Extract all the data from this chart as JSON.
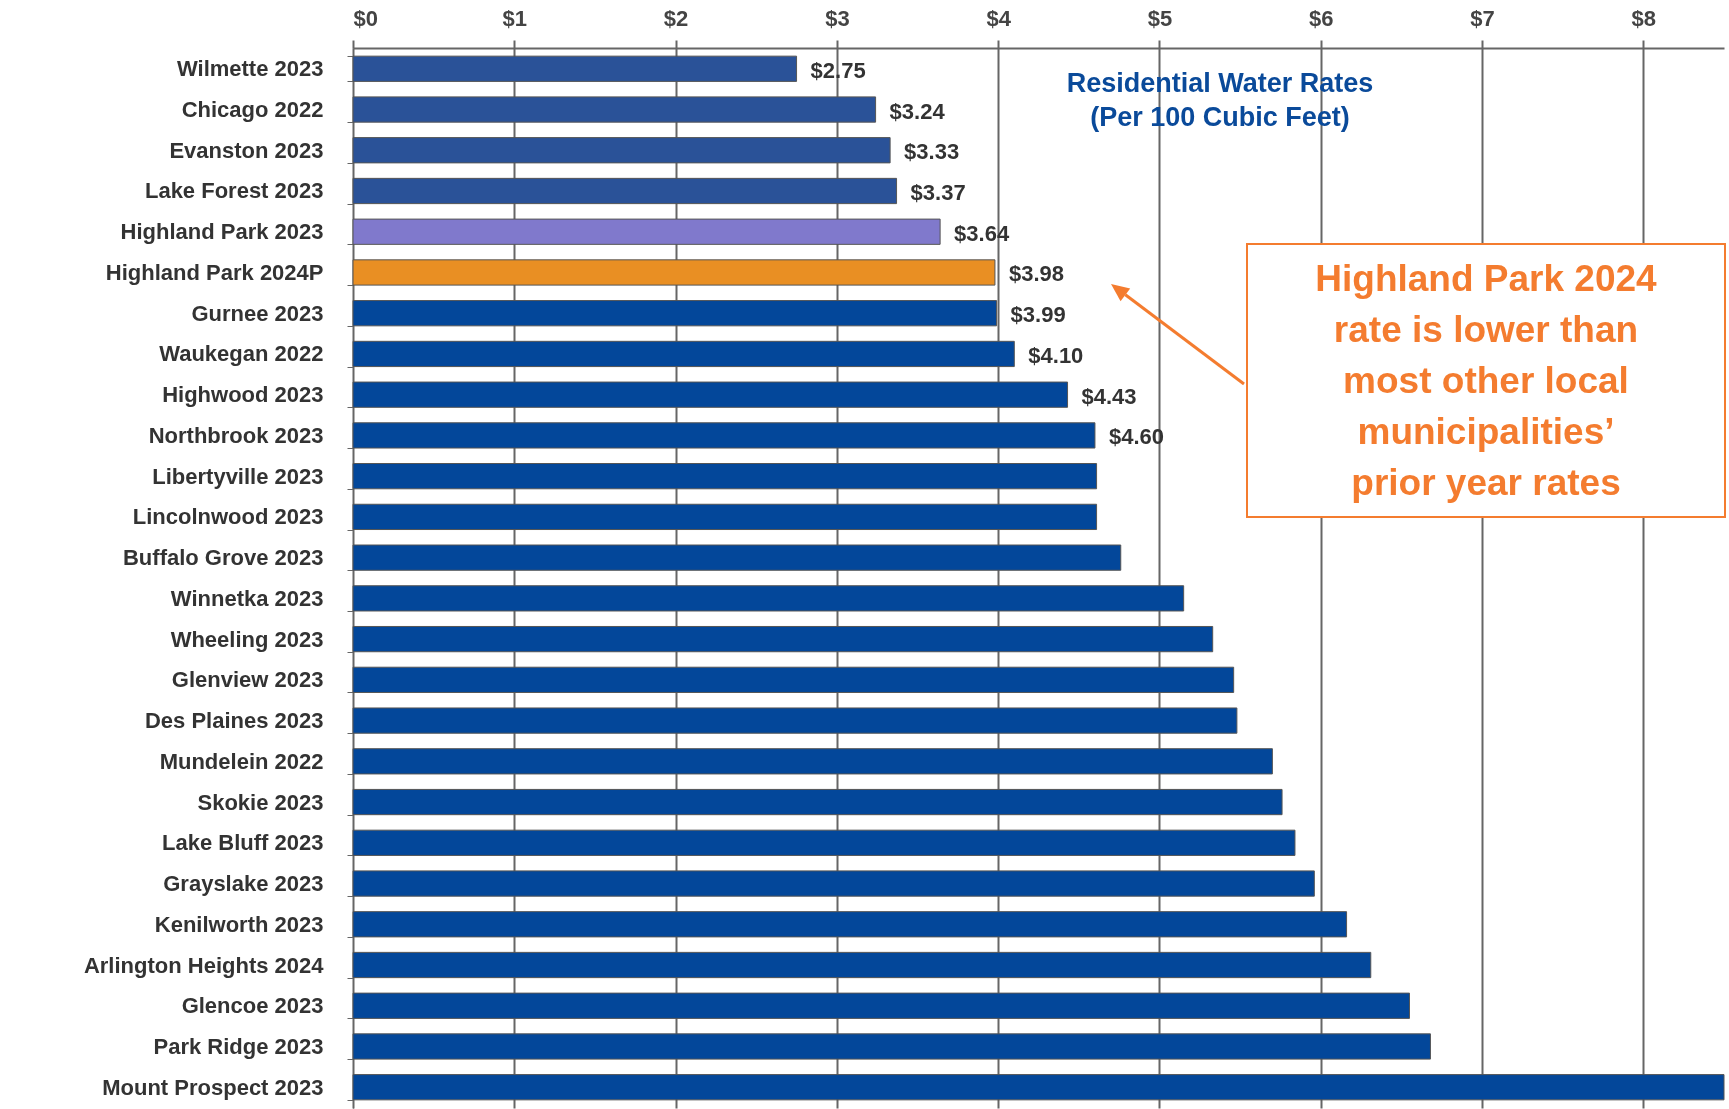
{
  "chart_data": {
    "type": "bar",
    "orientation": "horizontal",
    "title": "Residential Water Rates\n(Per 100 Cubic Feet)",
    "categories": [
      "Wilmette 2023",
      "Chicago 2022",
      "Evanston 2023",
      "Lake Forest 2023",
      "Highland Park 2023",
      "Highland Park 2024P",
      "Gurnee 2023",
      "Waukegan 2022",
      "Highwood 2023",
      "Northbrook 2023",
      "Libertyville 2023",
      "Lincolnwood 2023",
      "Buffalo Grove 2023",
      "Winnetka 2023",
      "Wheeling 2023",
      "Glenview 2023",
      "Des Plaines 2023",
      "Mundelein 2022",
      "Skokie 2023",
      "Lake Bluff 2023",
      "Grayslake 2023",
      "Kenilworth 2023",
      "Arlington Heights 2024",
      "Glencoe 2023",
      "Park Ridge 2023",
      "Mount Prospect 2023"
    ],
    "values": [
      2.75,
      3.24,
      3.33,
      3.37,
      3.64,
      3.98,
      3.99,
      4.1,
      4.43,
      4.6,
      4.61,
      4.61,
      4.76,
      5.15,
      5.33,
      5.46,
      5.48,
      5.7,
      5.76,
      5.84,
      5.96,
      6.16,
      6.31,
      6.55,
      6.68,
      8.5
    ],
    "value_labels": [
      "$2.75",
      "$3.24",
      "$3.33",
      "$3.37",
      "$3.64",
      "$3.98",
      "$3.99",
      "$4.10",
      "$4.43",
      "$4.60",
      null,
      null,
      null,
      null,
      null,
      null,
      null,
      null,
      null,
      null,
      null,
      null,
      null,
      null,
      null,
      null
    ],
    "colors": [
      "#2a5298",
      "#2a5298",
      "#2a5298",
      "#2a5298",
      "#8079cc",
      "#e98f23",
      "#03479a",
      "#03479a",
      "#03479a",
      "#03479a",
      "#03479a",
      "#03479a",
      "#03479a",
      "#03479a",
      "#03479a",
      "#03479a",
      "#03479a",
      "#03479a",
      "#03479a",
      "#03479a",
      "#03479a",
      "#03479a",
      "#03479a",
      "#03479a",
      "#03479a",
      "#03479a"
    ],
    "xlim": [
      0,
      8.5
    ],
    "xticks": [
      {
        "value": 0,
        "label": "$0"
      },
      {
        "value": 1,
        "label": "$1"
      },
      {
        "value": 2,
        "label": "$2"
      },
      {
        "value": 3,
        "label": "$3"
      },
      {
        "value": 4,
        "label": "$4"
      },
      {
        "value": 5,
        "label": "$5"
      },
      {
        "value": 6,
        "label": "$6"
      },
      {
        "value": 7,
        "label": "$7"
      },
      {
        "value": 8,
        "label": "$8"
      }
    ],
    "grid": "x",
    "annotations": [
      "Highland Park 2024\nrate is lower than\nmost other local\nmunicipalities’\nprior year rates"
    ]
  }
}
